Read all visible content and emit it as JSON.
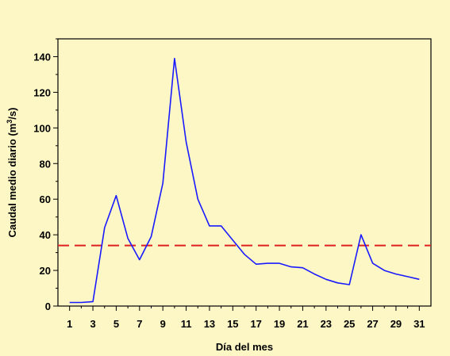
{
  "colors": {
    "background": "#fdf7c6",
    "series": "#1a1aff",
    "reference": "#e02020",
    "axis": "#000000"
  },
  "chart_data": {
    "type": "line",
    "title": "",
    "xlabel": "Día del mes",
    "ylabel_main": "Caudal medio diario (m",
    "ylabel_sup": "3",
    "ylabel_end": "/s)",
    "xlim": [
      0,
      32
    ],
    "ylim": [
      0,
      150
    ],
    "xticks": [
      1,
      3,
      5,
      7,
      9,
      11,
      13,
      15,
      17,
      19,
      21,
      23,
      25,
      27,
      29,
      31
    ],
    "yticks": [
      0,
      20,
      40,
      60,
      80,
      100,
      120,
      140
    ],
    "grid": false,
    "series": [
      {
        "x": [
          1,
          2,
          3,
          4,
          5,
          6,
          7,
          8,
          9,
          10,
          11,
          12,
          13,
          14,
          15,
          16,
          17,
          18,
          19,
          20,
          21,
          22,
          23,
          24,
          25,
          26,
          27,
          28,
          29,
          30,
          31
        ],
        "values": [
          2,
          2,
          2.5,
          44,
          62,
          38,
          26,
          39,
          69,
          139,
          92,
          60,
          45,
          45,
          37,
          29,
          23.5,
          24,
          24,
          22,
          21.5,
          18,
          15,
          13,
          12,
          40,
          24,
          20,
          18,
          16.5,
          15
        ]
      }
    ],
    "reference_line": {
      "y": 34,
      "style": "dashed"
    }
  }
}
